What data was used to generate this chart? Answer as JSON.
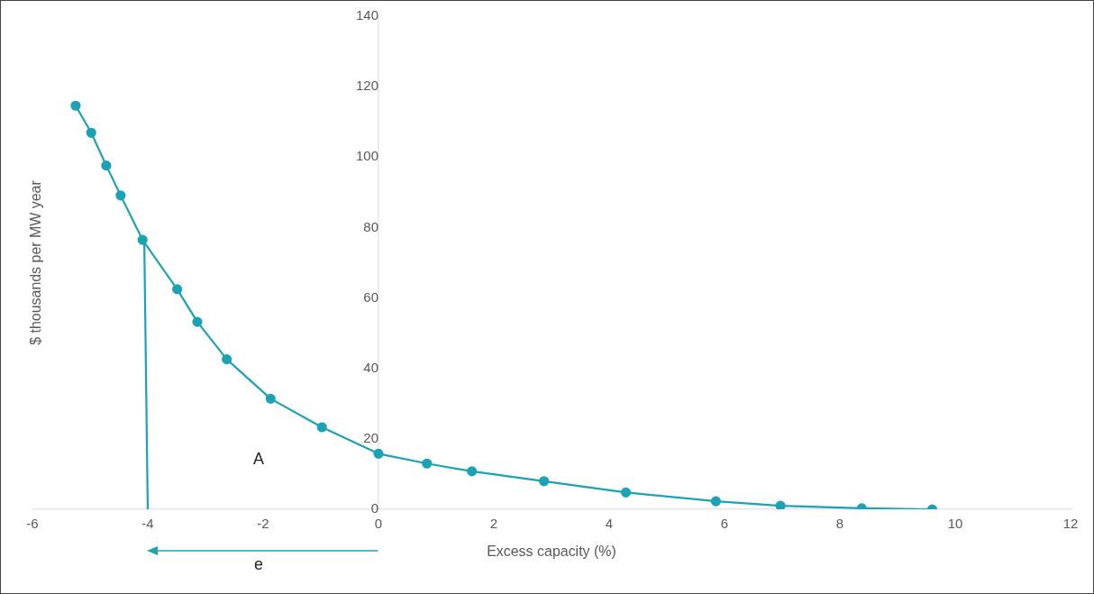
{
  "chart_data": {
    "type": "line",
    "xlabel": "Excess capacity (%)",
    "ylabel": "$ thousands per MW year",
    "xlim": [
      -6,
      12
    ],
    "xticks": [
      -6,
      -4,
      -2,
      0,
      2,
      4,
      6,
      8,
      10,
      12
    ],
    "ylim": [
      0,
      140
    ],
    "yticks": [
      0,
      20,
      40,
      60,
      80,
      100,
      120,
      140
    ],
    "grid": false,
    "legend": false,
    "marker": "circle",
    "series": [
      {
        "color": "#1ba3b5",
        "x": [
          -5.25,
          -4.98,
          -4.72,
          -4.47,
          -4.09,
          -3.49,
          -3.14,
          -2.63,
          -1.87,
          -0.98,
          0,
          0.84,
          1.62,
          2.87,
          4.29,
          5.85,
          6.97,
          8.38,
          9.6
        ],
        "values": [
          114.6,
          106.9,
          97.6,
          89.1,
          76.5,
          62.5,
          53.2,
          42.6,
          31.4,
          23.3,
          15.8,
          13,
          10.8,
          8,
          4.8,
          2.3,
          1,
          0.3,
          0
        ]
      },
      {
        "type": "line",
        "marker": "none",
        "color": "#1ba3b5",
        "x": [
          -4.06,
          -4
        ],
        "values": [
          76,
          0
        ]
      }
    ],
    "annotations": [
      "A",
      "e"
    ]
  }
}
